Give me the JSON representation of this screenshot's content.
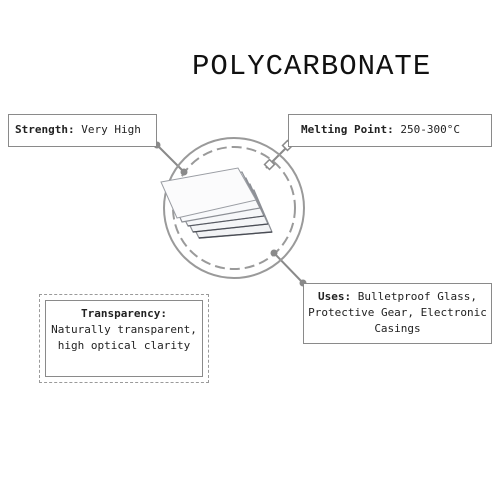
{
  "title": "POLYCARBONATE",
  "properties": {
    "strength": {
      "label": "Strength:",
      "value": "Very High"
    },
    "melting_point": {
      "label": "Melting Point:",
      "value": "250-300°C"
    },
    "uses": {
      "label": "Uses:",
      "value": "Bulletproof Glass, Protective Gear, Electronic Casings"
    },
    "transparency": {
      "label": "Transparency:",
      "value": "Naturally transparent, high optical clarity"
    }
  },
  "colors": {
    "line": "#8a8a8a",
    "text": "#222222"
  },
  "icons": {
    "center": "stacked-polycarbonate-sheets-image"
  }
}
